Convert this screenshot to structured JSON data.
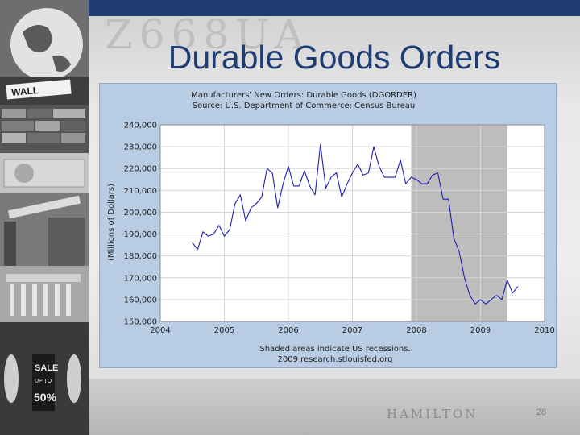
{
  "slide": {
    "title": "Durable Goods Orders",
    "page_number": "28"
  },
  "collage": {
    "sign_wall": "WALL",
    "sign_sale": "SALE",
    "sign_percent": "50%",
    "sign_upto": "UP TO"
  },
  "background": {
    "serial_watermark": "Z668UA",
    "portrait_name": "HAMILTON"
  },
  "colors": {
    "title": "#1f3d73",
    "chart_panel": "#b8cce4",
    "series_line": "#1f1fb4",
    "recession_shade": "#bdbdbd"
  },
  "chart_data": {
    "type": "line",
    "title": "Manufacturers' New Orders: Durable Goods (DGORDER)",
    "subtitle": "Source: U.S. Department of Commerce: Census Bureau",
    "ylabel": "(Millions of Dollars)",
    "xlabel": "Shaded areas indicate US recessions.",
    "footer": "2009 research.stlouisfed.org",
    "xlim": [
      2004,
      2010
    ],
    "ylim": [
      150000,
      240000
    ],
    "x_ticks": [
      "2004",
      "2005",
      "2006",
      "2007",
      "2008",
      "2009",
      "2010"
    ],
    "y_ticks": [
      "150,000",
      "160,000",
      "170,000",
      "180,000",
      "190,000",
      "200,000",
      "210,000",
      "220,000",
      "230,000",
      "240,000"
    ],
    "grid": true,
    "recessions": [
      [
        2007.917,
        2009.417
      ]
    ],
    "x": [
      "2004-07",
      "2004-08",
      "2004-09",
      "2004-10",
      "2004-11",
      "2004-12",
      "2005-01",
      "2005-02",
      "2005-03",
      "2005-04",
      "2005-05",
      "2005-06",
      "2005-07",
      "2005-08",
      "2005-09",
      "2005-10",
      "2005-11",
      "2005-12",
      "2006-01",
      "2006-02",
      "2006-03",
      "2006-04",
      "2006-05",
      "2006-06",
      "2006-07",
      "2006-08",
      "2006-09",
      "2006-10",
      "2006-11",
      "2006-12",
      "2007-01",
      "2007-02",
      "2007-03",
      "2007-04",
      "2007-05",
      "2007-06",
      "2007-07",
      "2007-08",
      "2007-09",
      "2007-10",
      "2007-11",
      "2007-12",
      "2008-01",
      "2008-02",
      "2008-03",
      "2008-04",
      "2008-05",
      "2008-06",
      "2008-07",
      "2008-08",
      "2008-09",
      "2008-10",
      "2008-11",
      "2008-12",
      "2009-01",
      "2009-02",
      "2009-03",
      "2009-04",
      "2009-05",
      "2009-06",
      "2009-07",
      "2009-08",
      "2009-09",
      "2009-10"
    ],
    "series": [
      {
        "values": [
          186000,
          183000,
          191000,
          189000,
          190000,
          194000,
          189000,
          192000,
          204000,
          208000,
          196000,
          202000,
          204000,
          207000,
          220000,
          218000,
          202000,
          213000,
          221000,
          212000,
          212000,
          219000,
          212000,
          208000,
          231000,
          211000,
          216000,
          218000,
          207000,
          213000,
          218000,
          222000,
          217000,
          218000,
          230000,
          221000,
          216000,
          216000,
          216000,
          224000,
          213000,
          216000,
          215000,
          213000,
          213000,
          217000,
          218000,
          206000,
          206000,
          188000,
          182000,
          170000,
          162000,
          158000,
          160000,
          158000,
          160000,
          162000,
          160000,
          169000,
          163000,
          166000,
          null,
          null
        ]
      }
    ]
  }
}
